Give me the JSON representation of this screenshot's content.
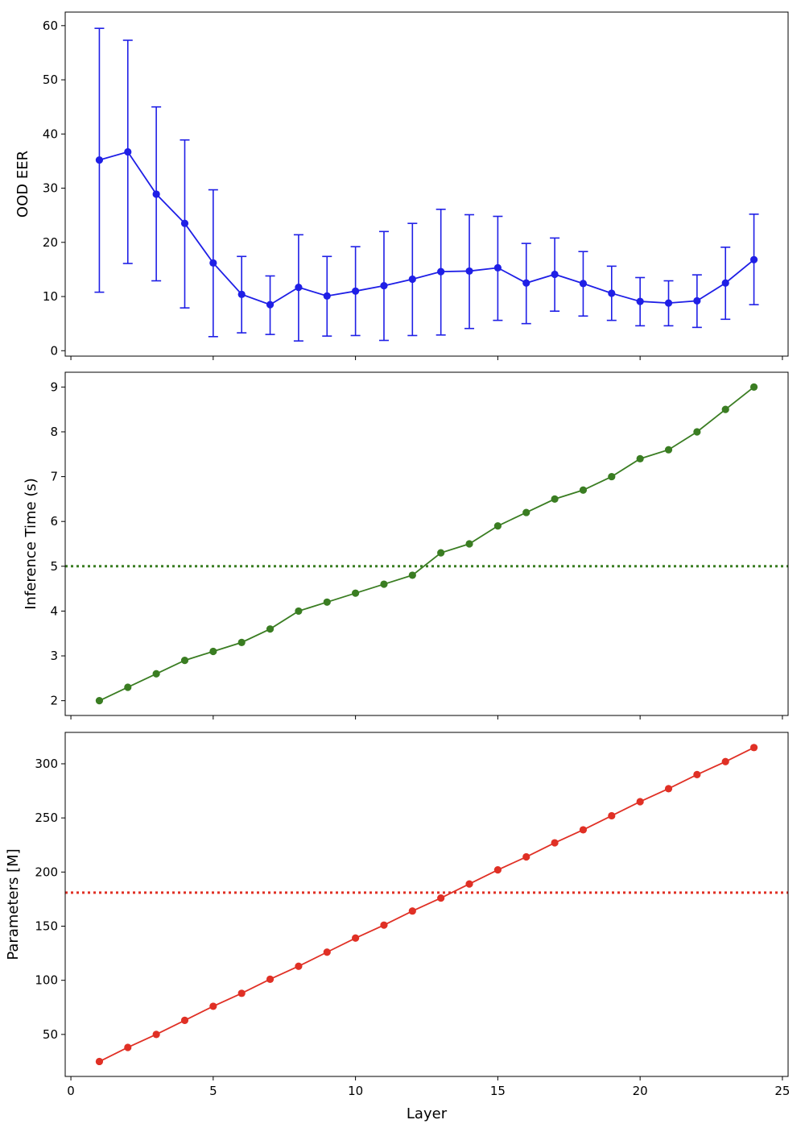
{
  "chart_data": [
    {
      "type": "line",
      "panel": "top",
      "title": "",
      "xlabel": "",
      "ylabel": "OOD EER",
      "xlim": [
        -0.2,
        25.2
      ],
      "ylim": [
        -1,
        62.5
      ],
      "xticks": [
        0,
        5,
        10,
        15,
        20,
        25
      ],
      "yticks": [
        0,
        10,
        20,
        30,
        40,
        50,
        60
      ],
      "grid": false,
      "color": "#1f1fe6",
      "error_bars": true,
      "series": [
        {
          "x": [
            1,
            2,
            3,
            4,
            5,
            6,
            7,
            8,
            9,
            10,
            11,
            12,
            13,
            14,
            15,
            16,
            17,
            18,
            19,
            20,
            21,
            22,
            23,
            24
          ],
          "values": [
            35.2,
            36.7,
            28.9,
            23.5,
            16.2,
            10.4,
            8.5,
            11.7,
            10.1,
            11.0,
            12.0,
            13.2,
            14.6,
            14.7,
            15.3,
            12.5,
            14.1,
            12.4,
            10.6,
            9.1,
            8.8,
            9.2,
            12.5,
            16.8
          ],
          "lower": [
            10.8,
            16.1,
            12.9,
            7.9,
            2.6,
            3.3,
            3.0,
            1.8,
            2.7,
            2.8,
            1.9,
            2.8,
            2.9,
            4.1,
            5.6,
            5.0,
            7.3,
            6.4,
            5.6,
            4.6,
            4.6,
            4.3,
            5.8,
            8.5
          ],
          "upper": [
            59.5,
            57.3,
            45.0,
            38.9,
            29.7,
            17.4,
            13.8,
            21.4,
            17.4,
            19.2,
            22.0,
            23.5,
            26.1,
            25.1,
            24.8,
            19.8,
            20.8,
            18.3,
            15.6,
            13.5,
            12.9,
            14.0,
            19.1,
            25.2
          ]
        }
      ]
    },
    {
      "type": "line",
      "panel": "middle",
      "title": "",
      "xlabel": "",
      "ylabel": "Inference Time (s)",
      "xlim": [
        -0.2,
        25.2
      ],
      "ylim": [
        1.67,
        9.33
      ],
      "xticks": [
        0,
        5,
        10,
        15,
        20,
        25
      ],
      "yticks": [
        2,
        3,
        4,
        5,
        6,
        7,
        8,
        9
      ],
      "grid": false,
      "color": "#3a7d22",
      "reference_line": 5.0,
      "series": [
        {
          "x": [
            1,
            2,
            3,
            4,
            5,
            6,
            7,
            8,
            9,
            10,
            11,
            12,
            13,
            14,
            15,
            16,
            17,
            18,
            19,
            20,
            21,
            22,
            23,
            24
          ],
          "values": [
            2.0,
            2.3,
            2.6,
            2.9,
            3.1,
            3.3,
            3.6,
            4.0,
            4.2,
            4.4,
            4.6,
            4.8,
            5.3,
            5.5,
            5.9,
            6.2,
            6.5,
            6.7,
            7.0,
            7.4,
            7.6,
            8.0,
            8.5,
            9.0
          ]
        }
      ]
    },
    {
      "type": "line",
      "panel": "bottom",
      "title": "",
      "xlabel": "Layer",
      "ylabel": "Parameters [M]",
      "xlim": [
        -0.2,
        25.2
      ],
      "ylim": [
        11.2,
        329
      ],
      "xticks": [
        0,
        5,
        10,
        15,
        20,
        25
      ],
      "yticks": [
        50,
        100,
        150,
        200,
        250,
        300
      ],
      "grid": false,
      "color": "#e03025",
      "reference_line": 181,
      "series": [
        {
          "x": [
            1,
            2,
            3,
            4,
            5,
            6,
            7,
            8,
            9,
            10,
            11,
            12,
            13,
            14,
            15,
            16,
            17,
            18,
            19,
            20,
            21,
            22,
            23,
            24
          ],
          "values": [
            25,
            38,
            50,
            63,
            76,
            88,
            101,
            113,
            126,
            139,
            151,
            164,
            176,
            189,
            202,
            214,
            227,
            239,
            252,
            265,
            277,
            290,
            302,
            315
          ]
        }
      ]
    }
  ]
}
